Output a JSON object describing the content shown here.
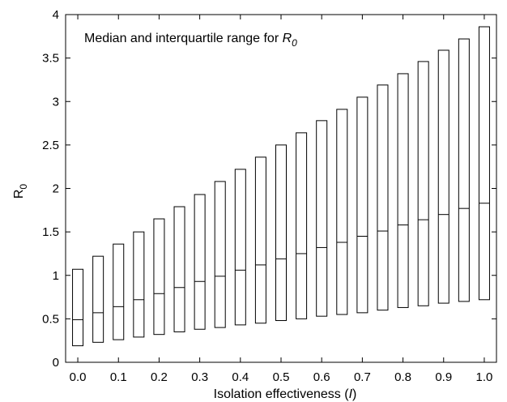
{
  "chart_data": {
    "type": "box",
    "annotation": {
      "text": "Median and interquartile range for ",
      "symbol": "R",
      "subscript": "0"
    },
    "ylabel": {
      "symbol": "R",
      "subscript": "0"
    },
    "xlabel": {
      "text": "Isolation effectiveness (",
      "symbol": "I",
      "close": ")"
    },
    "ylim": [
      0,
      4
    ],
    "xlim": [
      -0.03,
      1.03
    ],
    "yticks": [
      0,
      0.5,
      1,
      1.5,
      2,
      2.5,
      3,
      3.5,
      4
    ],
    "ytick_labels": [
      "0",
      "0.5",
      "1",
      "1.5",
      "2",
      "2.5",
      "3",
      "3.5",
      "4"
    ],
    "xticks": [
      0,
      0.1,
      0.2,
      0.3,
      0.4,
      0.5,
      0.6,
      0.7,
      0.8,
      0.9,
      1.0
    ],
    "xtick_labels": [
      "0.0",
      "0.1",
      "0.2",
      "0.3",
      "0.4",
      "0.5",
      "0.6",
      "0.7",
      "0.8",
      "0.9",
      "1.0"
    ],
    "x": [
      0,
      0.05,
      0.1,
      0.15,
      0.2,
      0.25,
      0.3,
      0.35,
      0.4,
      0.45,
      0.5,
      0.55,
      0.6,
      0.65,
      0.7,
      0.75,
      0.8,
      0.85,
      0.9,
      0.95,
      1.0
    ],
    "q1": [
      0.19,
      0.23,
      0.26,
      0.29,
      0.32,
      0.35,
      0.38,
      0.4,
      0.43,
      0.45,
      0.48,
      0.5,
      0.53,
      0.55,
      0.57,
      0.6,
      0.63,
      0.65,
      0.68,
      0.7,
      0.72
    ],
    "median": [
      0.49,
      0.57,
      0.64,
      0.72,
      0.79,
      0.86,
      0.93,
      0.99,
      1.06,
      1.12,
      1.19,
      1.25,
      1.32,
      1.38,
      1.45,
      1.51,
      1.58,
      1.64,
      1.7,
      1.77,
      1.83
    ],
    "q3": [
      1.07,
      1.22,
      1.36,
      1.5,
      1.65,
      1.79,
      1.93,
      2.08,
      2.22,
      2.36,
      2.5,
      2.64,
      2.78,
      2.91,
      3.05,
      3.19,
      3.32,
      3.46,
      3.59,
      3.72,
      3.86
    ],
    "grid": false,
    "legend": "none"
  }
}
